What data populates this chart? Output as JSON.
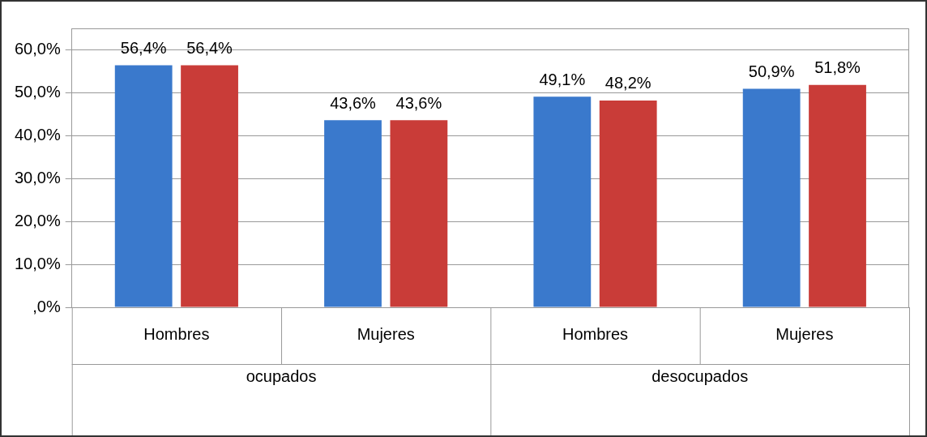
{
  "chart_data": {
    "type": "bar",
    "categories": [
      "Hombres",
      "Mujeres",
      "Hombres",
      "Mujeres"
    ],
    "series": [
      {
        "color": "#3a79cc",
        "values": [
          56.4,
          43.6,
          49.1,
          50.9
        ],
        "value_labels": [
          "56,4%",
          "43,6%",
          "49,1%",
          "50,9%"
        ]
      },
      {
        "color": "#c93c38",
        "values": [
          56.4,
          43.6,
          48.2,
          51.8
        ],
        "value_labels": [
          "56,4%",
          "43,6%",
          "48,2%",
          "51,8%"
        ]
      }
    ],
    "ylim": [
      0,
      65
    ],
    "yticks": [
      {
        "value": 0,
        "label": ",0%"
      },
      {
        "value": 10,
        "label": "10,0%"
      },
      {
        "value": 20,
        "label": "20,0%"
      },
      {
        "value": 30,
        "label": "30,0%"
      },
      {
        "value": 40,
        "label": "40,0%"
      },
      {
        "value": 50,
        "label": "50,0%"
      },
      {
        "value": 60,
        "label": "60,0%"
      }
    ],
    "annotations": [
      "ocupados",
      "desocupados"
    ],
    "grid": "y",
    "legend": false
  }
}
